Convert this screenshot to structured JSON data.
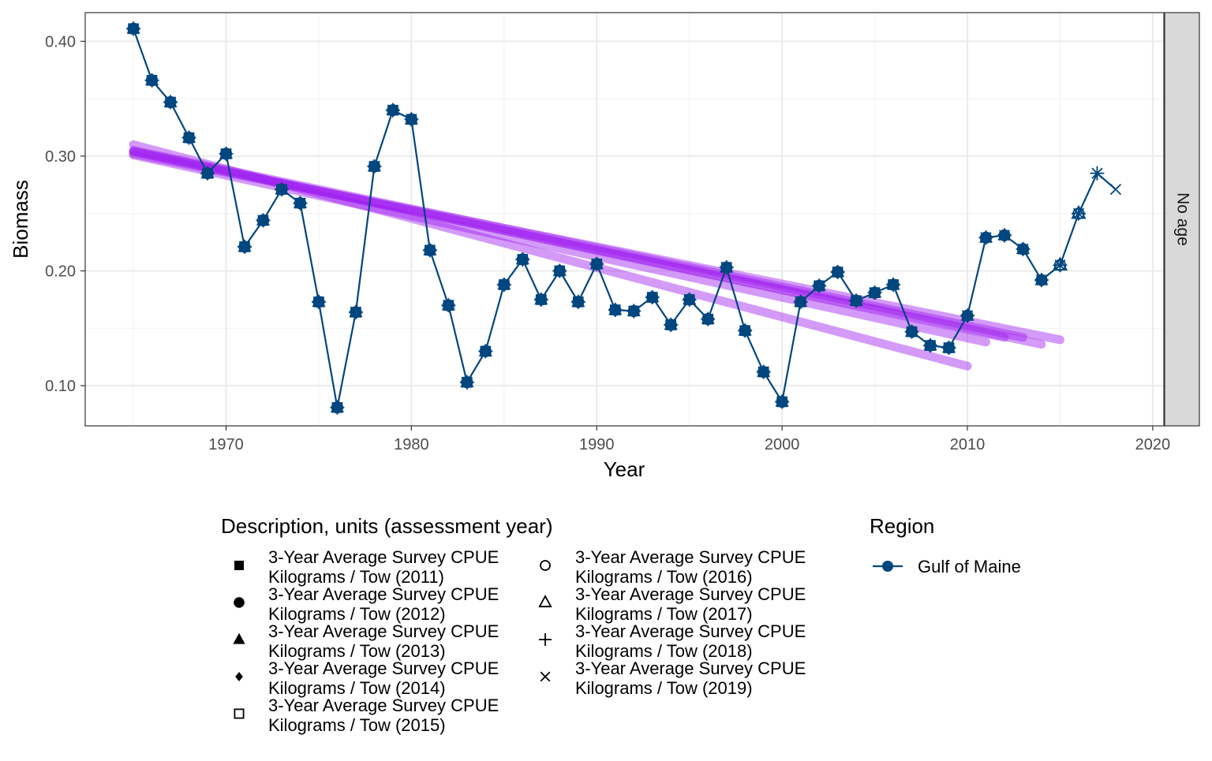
{
  "chart_data": {
    "type": "line",
    "xlabel": "Year",
    "ylabel": "Biomass",
    "xlim": [
      1962.4,
      2020.6
    ],
    "ylim": [
      0.065,
      0.425
    ],
    "x_ticks": [
      1970,
      1980,
      1990,
      2000,
      2010,
      2020
    ],
    "x_tick_labels": [
      "1970",
      "1980",
      "1990",
      "2000",
      "2010",
      "2020"
    ],
    "y_ticks": [
      0.1,
      0.2,
      0.3,
      0.4
    ],
    "y_tick_labels": [
      "0.10",
      "0.20",
      "0.30",
      "0.40"
    ],
    "grid": true,
    "facet_label": "No age",
    "series_color": "#00467f",
    "trend_color": "#a020f0",
    "series": [
      {
        "years": [
          1965,
          1966,
          1967,
          1968,
          1969,
          1970,
          1971,
          1972,
          1973,
          1974,
          1975,
          1976,
          1977,
          1978,
          1979,
          1980,
          1981,
          1982,
          1983,
          1984,
          1985,
          1986,
          1987,
          1988,
          1989,
          1990,
          1991,
          1992,
          1993,
          1994,
          1995,
          1996,
          1997,
          1998,
          1999,
          2000,
          2001,
          2002,
          2003,
          2004,
          2005,
          2006,
          2007,
          2008,
          2009,
          2010,
          2011,
          2012,
          2013,
          2014,
          2015,
          2016,
          2017,
          2018
        ],
        "values": [
          0.411,
          0.366,
          0.347,
          0.316,
          0.285,
          0.302,
          0.221,
          0.244,
          0.271,
          0.259,
          0.173,
          0.081,
          0.164,
          0.291,
          0.34,
          0.332,
          0.218,
          0.17,
          0.103,
          0.13,
          0.188,
          0.21,
          0.175,
          0.2,
          0.173,
          0.206,
          0.166,
          0.165,
          0.177,
          0.153,
          0.175,
          0.158,
          0.203,
          0.148,
          0.112,
          0.086,
          0.173,
          0.187,
          0.199,
          0.174,
          0.181,
          0.188,
          0.147,
          0.135,
          0.133,
          0.161,
          0.229,
          0.231,
          0.219,
          0.192,
          0.205,
          0.25,
          0.285,
          0.271
        ]
      }
    ],
    "trend_lines": [
      {
        "assessment": "2011",
        "x": [
          1965,
          2010
        ],
        "y": [
          0.31,
          0.117
        ]
      },
      {
        "assessment": "2012",
        "x": [
          1965,
          2011
        ],
        "y": [
          0.301,
          0.138
        ]
      },
      {
        "assessment": "2013",
        "x": [
          1965,
          2012
        ],
        "y": [
          0.304,
          0.142
        ]
      },
      {
        "assessment": "2014",
        "x": [
          1965,
          2013
        ],
        "y": [
          0.305,
          0.142
        ]
      },
      {
        "assessment": "2015",
        "x": [
          1965,
          2014
        ],
        "y": [
          0.304,
          0.136
        ]
      },
      {
        "assessment": "2016",
        "x": [
          1965,
          2015
        ],
        "y": [
          0.302,
          0.14
        ]
      }
    ],
    "legend": {
      "description_title": "Description, units (assessment year)",
      "description_items": [
        {
          "line1": "3-Year Average Survey CPUE",
          "line2": "Kilograms / Tow (2011)",
          "shape": "square-filled"
        },
        {
          "line1": "3-Year Average Survey CPUE",
          "line2": "Kilograms / Tow (2012)",
          "shape": "circle-filled"
        },
        {
          "line1": "3-Year Average Survey CPUE",
          "line2": "Kilograms / Tow (2013)",
          "shape": "triangle-filled"
        },
        {
          "line1": "3-Year Average Survey CPUE",
          "line2": "Kilograms / Tow (2014)",
          "shape": "diamond-filled"
        },
        {
          "line1": "3-Year Average Survey CPUE",
          "line2": "Kilograms / Tow (2015)",
          "shape": "square-open"
        },
        {
          "line1": "3-Year Average Survey CPUE",
          "line2": "Kilograms / Tow (2016)",
          "shape": "circle-open"
        },
        {
          "line1": "3-Year Average Survey CPUE",
          "line2": "Kilograms / Tow (2017)",
          "shape": "triangle-open"
        },
        {
          "line1": "3-Year Average Survey CPUE",
          "line2": "Kilograms / Tow (2018)",
          "shape": "plus"
        },
        {
          "line1": "3-Year Average Survey CPUE",
          "line2": "Kilograms / Tow (2019)",
          "shape": "cross"
        }
      ],
      "region_title": "Region",
      "region_items": [
        {
          "label": "Gulf of Maine"
        }
      ]
    }
  }
}
